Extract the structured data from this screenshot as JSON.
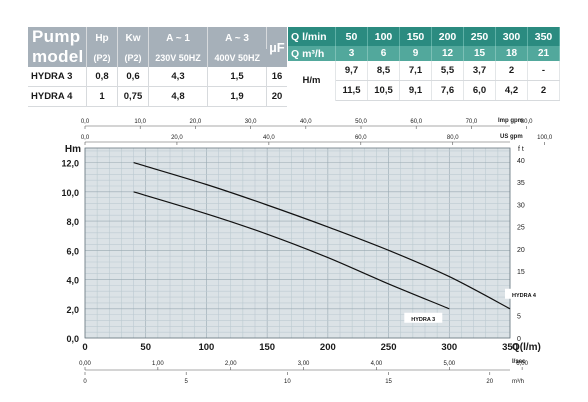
{
  "left_table": {
    "pump_model_line1": "Pump",
    "pump_model_line2": "model",
    "headers": [
      "Hp",
      "Kw",
      "A ~ 1",
      "A ~ 3",
      "µF"
    ],
    "subheaders": [
      "(P2)",
      "(P2)",
      "230V 50HZ",
      "400V 50HZ"
    ],
    "rows": [
      {
        "model": "HYDRA 3",
        "hp": "0,8",
        "kw": "0,6",
        "a1": "4,3",
        "a3": "1,5",
        "uf": "16"
      },
      {
        "model": "HYDRA 4",
        "hp": "1",
        "kw": "0,75",
        "a1": "4,8",
        "a3": "1,9",
        "uf": "20"
      }
    ]
  },
  "right_table": {
    "flow_label": "Q l/min",
    "flow_values": [
      "50",
      "100",
      "150",
      "200",
      "250",
      "300",
      "350"
    ],
    "flow_m3_label": "Q m³/h",
    "flow_m3_values": [
      "3",
      "6",
      "9",
      "12",
      "15",
      "18",
      "21"
    ],
    "head_label": "H/m",
    "rows": [
      {
        "model": "HYDRA 3",
        "values": [
          "9,7",
          "8,5",
          "7,1",
          "5,5",
          "3,7",
          "2",
          "-"
        ]
      },
      {
        "model": "HYDRA 4",
        "values": [
          "11,5",
          "10,5",
          "9,1",
          "7,6",
          "6,0",
          "4,2",
          "2"
        ]
      }
    ]
  },
  "chart_data": {
    "type": "line",
    "xlabel": "Q(l/m)",
    "ylabel": "Hm",
    "right_axis_label": "f t",
    "xlim": [
      0,
      350
    ],
    "ylim": [
      0,
      13
    ],
    "x_ticks": [
      "0",
      "50",
      "100",
      "150",
      "200",
      "250",
      "300",
      "350"
    ],
    "y_ticks": [
      "0,0",
      "2,0",
      "4,0",
      "6,0",
      "8,0",
      "10,0",
      "12,0"
    ],
    "right_ticks": [
      "0",
      "5",
      "10",
      "15",
      "20",
      "25",
      "30",
      "35",
      "40"
    ],
    "grid": true,
    "top_axis_1": {
      "label": "Imp gpm",
      "ticks": [
        "0,0",
        "10,0",
        "20,0",
        "30,0",
        "40,0",
        "50,0",
        "60,0",
        "70,0",
        "80,0"
      ]
    },
    "top_axis_2": {
      "label": "US gpm",
      "ticks": [
        "0,0",
        "20,0",
        "40,0",
        "60,0",
        "80,0",
        "100,0"
      ]
    },
    "bottom_axis_1": {
      "label": "l/sec",
      "ticks": [
        "0,00",
        "1,00",
        "2,00",
        "3,00",
        "4,00",
        "5,00",
        "6,00"
      ]
    },
    "bottom_axis_2": {
      "label": "m³/h",
      "ticks": [
        "0",
        "5",
        "10",
        "15",
        "20"
      ]
    },
    "series": [
      {
        "name": "HYDRA 3",
        "x": [
          40,
          100,
          150,
          200,
          250,
          300
        ],
        "y": [
          10,
          8.5,
          7.1,
          5.5,
          3.7,
          2
        ]
      },
      {
        "name": "HYDRA 4",
        "x": [
          40,
          100,
          150,
          200,
          250,
          300,
          350
        ],
        "y": [
          12,
          10.5,
          9.1,
          7.6,
          6.0,
          4.2,
          2
        ]
      }
    ]
  }
}
